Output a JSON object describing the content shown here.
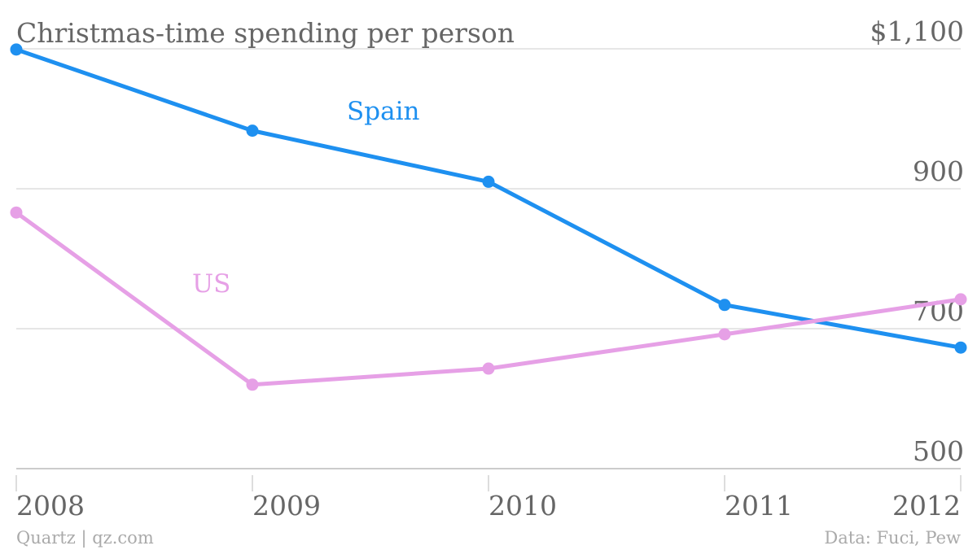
{
  "chart_data": {
    "type": "line",
    "title": "Christmas-time spending per person",
    "x": [
      "2008",
      "2009",
      "2010",
      "2011",
      "2012"
    ],
    "ylim": [
      500,
      1100
    ],
    "yticks": [
      {
        "value": 1100,
        "label": "$1,100"
      },
      {
        "value": 900,
        "label": "900"
      },
      {
        "value": 700,
        "label": "700"
      },
      {
        "value": 500,
        "label": "500"
      }
    ],
    "grid": true,
    "series": [
      {
        "name": "Spain",
        "color": "#1e90f0",
        "values": [
          1099,
          983,
          910,
          734,
          673
        ]
      },
      {
        "name": "US",
        "color": "#e6a0e6",
        "values": [
          866,
          620,
          643,
          692,
          742
        ]
      }
    ]
  },
  "footer": {
    "left": "Quartz | qz.com",
    "right": "Data: Fuci, Pew"
  }
}
